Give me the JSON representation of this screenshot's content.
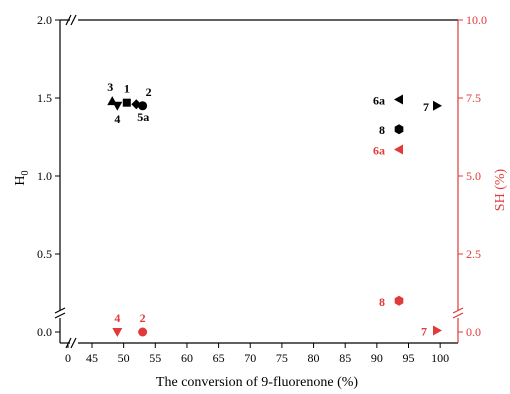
{
  "chart_data": {
    "type": "scatter",
    "xlabel": "The conversion of 9-fluorenone (%)",
    "ylabel_left": "H",
    "ylabel_left_sub": "0",
    "ylabel_right": "SH (%)",
    "x_ticks": [
      "0",
      "45",
      "50",
      "55",
      "60",
      "65",
      "70",
      "75",
      "80",
      "85",
      "90",
      "95",
      "100"
    ],
    "x_tick_values": [
      0,
      45,
      50,
      55,
      60,
      65,
      70,
      75,
      80,
      85,
      90,
      95,
      100
    ],
    "y_left_ticks": [
      "0.0",
      "0.5",
      "1.0",
      "1.5",
      "2.0"
    ],
    "y_left_tick_values": [
      0.0,
      0.5,
      1.0,
      1.5,
      2.0
    ],
    "y_right_ticks": [
      "0.0",
      "2.5",
      "5.0",
      "7.5",
      "10.0"
    ],
    "y_right_tick_values": [
      0.0,
      2.5,
      5.0,
      7.5,
      10.0
    ],
    "xlim": [
      42,
      101
    ],
    "ylim_left": [
      -0.1,
      2.0
    ],
    "ylim_right": [
      -0.5,
      10.0
    ],
    "axis_breaks": true,
    "colors": {
      "h0": "#000000",
      "sh": "#e03a3a"
    },
    "series": [
      {
        "axis": "left",
        "color": "#000000",
        "points": [
          {
            "label": "3",
            "x": 48.2,
            "y": 1.48,
            "marker": "triangle-up"
          },
          {
            "label": "4",
            "x": 49.0,
            "y": 1.45,
            "marker": "triangle-down"
          },
          {
            "label": "1",
            "x": 50.5,
            "y": 1.47,
            "marker": "square"
          },
          {
            "label": "5a",
            "x": 52.0,
            "y": 1.46,
            "marker": "diamond"
          },
          {
            "label": "2",
            "x": 53.0,
            "y": 1.45,
            "marker": "circle"
          },
          {
            "label": "6a",
            "x": 93.5,
            "y": 1.49,
            "marker": "triangle-left"
          },
          {
            "label": "7",
            "x": 99.5,
            "y": 1.45,
            "marker": "triangle-right"
          },
          {
            "label": "8",
            "x": 93.5,
            "y": 1.3,
            "marker": "hexagon"
          }
        ]
      },
      {
        "axis": "right",
        "color": "#e03a3a",
        "points": [
          {
            "label": "4",
            "x": 49.0,
            "y": 0.0,
            "marker": "triangle-down"
          },
          {
            "label": "2",
            "x": 53.0,
            "y": 0.0,
            "marker": "circle"
          },
          {
            "label": "6a",
            "x": 93.5,
            "y": 5.85,
            "marker": "triangle-left"
          },
          {
            "label": "8",
            "x": 93.5,
            "y": 1.0,
            "marker": "hexagon"
          },
          {
            "label": "7",
            "x": 99.5,
            "y": 0.05,
            "marker": "triangle-right"
          }
        ]
      }
    ]
  }
}
